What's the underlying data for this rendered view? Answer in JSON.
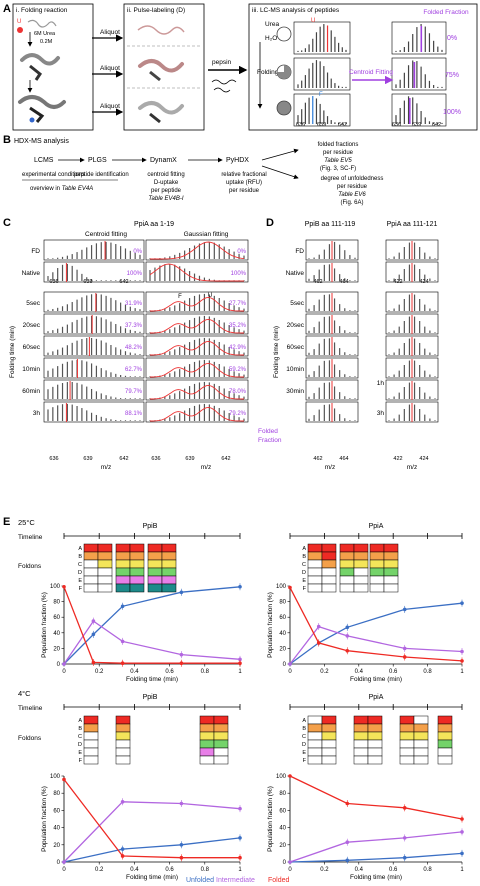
{
  "panelA": {
    "letter": "A",
    "step1": "i. Folding reaction",
    "step2": "ii. Pulse-labeling (D)",
    "step3": "iii. LC-MS analysis of peptides",
    "U": "U",
    "F": "F",
    "urea6": "6M Urea",
    "urea02": "0.2M",
    "aliquot": "Aliquot",
    "pepsin": "pepsin",
    "urea": "Urea",
    "h2o": "H₂O",
    "folding": "Folding",
    "centroid": "Centroid Fitting",
    "folded_title": "Folded Fraction",
    "fractions": [
      "0%",
      "75%",
      "100%"
    ],
    "ticks": [
      "636",
      "639",
      "642"
    ],
    "mz": "m/z"
  },
  "panelB": {
    "letter": "B",
    "title": "HDX-MS analysis",
    "steps": [
      "LCMS",
      "PLGS",
      "DynamX",
      "PyHDX"
    ],
    "exp": "experimental conditions",
    "pepid": "peptide identification",
    "overview": "overview in",
    "overview_table": "Table EV4A",
    "dynamx": [
      "centroid fitting",
      "D-uptake",
      "per peptide"
    ],
    "dynamx_table": "Table EV4B-I",
    "pyhdx": [
      "relative fractional",
      "uptake (RFU)",
      "per residue"
    ],
    "out1": [
      "folded fractions",
      "per residue"
    ],
    "out1_table": "Table EV5",
    "out1_ref": "(Fig. 3, SC-F)",
    "out2": [
      "degree of unfoldedness",
      "per residue"
    ],
    "out2_table": "Table EV6",
    "out2_ref": "(Fig. 6A)"
  },
  "panelC": {
    "letter": "C",
    "title": "PpiA aa 1-19",
    "col1": "Centroid fitting",
    "col2": "Gaussian fitting",
    "rows": [
      "FD",
      "Native",
      "5sec",
      "20sec",
      "60sec",
      "10min",
      "60min",
      "3h"
    ],
    "centroid_pct": [
      "0%",
      "100%",
      "31.9%",
      "37.3%",
      "48.2%",
      "62.7%",
      "79.7%",
      "88.1%"
    ],
    "gauss_pct": [
      "0%",
      "100%",
      "27.7%",
      "35.2%",
      "42.9%",
      "59.2%",
      "78.0%",
      "79.2%"
    ],
    "ylabel": "Folding time (min)",
    "ticks": [
      "636",
      "639",
      "642"
    ],
    "mz": "m/z",
    "F": "F",
    "U": "U",
    "folded_label": "Folded Fraction"
  },
  "panelD": {
    "letter": "D",
    "title1": "PpiB aa 111-119",
    "title2": "PpiA aa 111-121",
    "rows1": [
      "FD",
      "Native",
      "5sec",
      "20sec",
      "60sec",
      "10min",
      "30min"
    ],
    "rows2": [
      "1h",
      "3h"
    ],
    "ticks1": [
      "462",
      "464"
    ],
    "ticks2": [
      "422",
      "424"
    ],
    "ylabel": "Folding time (min)",
    "mz": "m/z"
  },
  "panelE": {
    "letter": "E",
    "temp25": "25°C",
    "temp4": "4°C",
    "timeline": "Timeline",
    "foldons": "Foldons",
    "foldon_letters": [
      "A",
      "B",
      "C",
      "D",
      "E",
      "F"
    ],
    "ylabel": "Population fraction (%)",
    "xlabel": "Folding time (min)",
    "legend": [
      "Unfolded",
      "Intermediate",
      "Folded"
    ],
    "colors": {
      "unfolded": "#3b6fc4",
      "intermediate": "#b266e0",
      "folded": "#ee2a24"
    }
  },
  "chart_data": [
    {
      "type": "line",
      "title": "PpiB",
      "xlabel": "Folding time (min)",
      "ylabel": "Population fraction (%)",
      "xlim": [
        0,
        1
      ],
      "ylim": [
        0,
        100
      ],
      "xticks": [
        "0",
        "0.2",
        "0.4",
        "0.6",
        "0.8",
        "1"
      ],
      "yticks": [
        "0",
        "20",
        "40",
        "60",
        "80",
        "100"
      ],
      "x": [
        0,
        0.167,
        0.333,
        0.667,
        1
      ],
      "series": [
        {
          "name": "Unfolded",
          "values": [
            0,
            38,
            74,
            92,
            99
          ]
        },
        {
          "name": "Intermediate",
          "values": [
            0,
            55,
            29,
            12,
            6
          ]
        },
        {
          "name": "Folded",
          "values": [
            99,
            2,
            1,
            1,
            1
          ]
        }
      ]
    },
    {
      "type": "line",
      "title": "PpiA",
      "xlabel": "Folding time (min)",
      "ylabel": "Population fraction (%)",
      "xlim": [
        0,
        1
      ],
      "ylim": [
        0,
        100
      ],
      "xticks": [
        "0",
        "0.2",
        "0.4",
        "0.6",
        "0.8",
        "1"
      ],
      "yticks": [
        "0",
        "20",
        "40",
        "60",
        "80",
        "100"
      ],
      "x": [
        0,
        0.167,
        0.333,
        0.667,
        1
      ],
      "series": [
        {
          "name": "Unfolded",
          "values": [
            0,
            27,
            47,
            70,
            78
          ]
        },
        {
          "name": "Intermediate",
          "values": [
            0,
            48,
            36,
            20,
            16
          ]
        },
        {
          "name": "Folded",
          "values": [
            98,
            27,
            17,
            9,
            4
          ]
        }
      ]
    },
    {
      "type": "line",
      "title": "PpiB",
      "xlabel": "Folding time (min)",
      "ylabel": "Population fraction (%)",
      "xlim": [
        0,
        1
      ],
      "ylim": [
        0,
        100
      ],
      "xticks": [
        "0",
        "0.2",
        "0.4",
        "0.6",
        "0.8",
        "1"
      ],
      "yticks": [
        "0",
        "20",
        "40",
        "60",
        "80",
        "100"
      ],
      "x": [
        0,
        0.333,
        0.667,
        1
      ],
      "series": [
        {
          "name": "Unfolded",
          "values": [
            0,
            15,
            20,
            28
          ]
        },
        {
          "name": "Intermediate",
          "values": [
            0,
            70,
            68,
            62
          ]
        },
        {
          "name": "Folded",
          "values": [
            96,
            7,
            5,
            5
          ]
        }
      ]
    },
    {
      "type": "line",
      "title": "PpiA",
      "xlabel": "Folding time (min)",
      "ylabel": "Population fraction (%)",
      "xlim": [
        0,
        1
      ],
      "ylim": [
        0,
        100
      ],
      "xticks": [
        "0",
        "0.2",
        "0.4",
        "0.6",
        "0.8",
        "1"
      ],
      "yticks": [
        "0",
        "20",
        "40",
        "60",
        "80",
        "100"
      ],
      "x": [
        0,
        0.333,
        0.667,
        1
      ],
      "series": [
        {
          "name": "Unfolded",
          "values": [
            0,
            2,
            5,
            10
          ]
        },
        {
          "name": "Intermediate",
          "values": [
            0,
            23,
            28,
            35
          ]
        },
        {
          "name": "Folded",
          "values": [
            100,
            68,
            63,
            50
          ]
        }
      ]
    }
  ]
}
